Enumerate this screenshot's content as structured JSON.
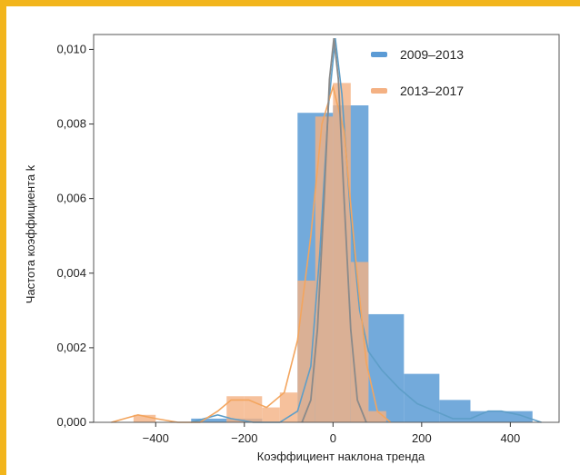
{
  "colors": {
    "frame": "#f2b51c",
    "series_a": "#5b9bd5",
    "series_b": "#f4b183",
    "kde_a": "#5e9ec8",
    "kde_b": "#f3a55e",
    "kde_peak": "#8a8a8a"
  },
  "chart_data": {
    "type": "bar",
    "title": "",
    "xlabel": "Коэффициент наклона тренда",
    "ylabel": "Частота  коэффициента k",
    "xlim": [
      -540,
      510
    ],
    "ylim": [
      0,
      0.0104
    ],
    "xticks": [
      -400,
      -200,
      0,
      200,
      400
    ],
    "xtick_labels": [
      "−400",
      "−200",
      "0",
      "200",
      "400"
    ],
    "yticks": [
      0,
      0.002,
      0.004,
      0.006,
      0.008,
      0.01
    ],
    "ytick_labels": [
      "0,000",
      "0,002",
      "0,004",
      "0,006",
      "0,008",
      "0,010"
    ],
    "legend_position": "top-right",
    "grid": false,
    "series": [
      {
        "name": "2009–2013",
        "color": "#5b9bd5",
        "bins": [
          {
            "x0": -320,
            "x1": -240,
            "value": 0.0001
          },
          {
            "x0": -240,
            "x1": -160,
            "value": 0.0001
          },
          {
            "x0": -80,
            "x1": 0,
            "value": 0.0083
          },
          {
            "x0": 0,
            "x1": 80,
            "value": 0.0085
          },
          {
            "x0": 80,
            "x1": 160,
            "value": 0.0029
          },
          {
            "x0": 160,
            "x1": 240,
            "value": 0.0013
          },
          {
            "x0": 240,
            "x1": 310,
            "value": 0.0006
          },
          {
            "x0": 310,
            "x1": 450,
            "value": 0.0003
          }
        ],
        "kde": [
          [
            -320,
            0.0
          ],
          [
            -290,
            0.0001
          ],
          [
            -260,
            0.0002
          ],
          [
            -230,
            0.0001
          ],
          [
            -180,
            0.0
          ],
          [
            -120,
            0.0
          ],
          [
            -80,
            0.0003
          ],
          [
            -50,
            0.0015
          ],
          [
            -30,
            0.0045
          ],
          [
            -10,
            0.0085
          ],
          [
            5,
            0.0103
          ],
          [
            20,
            0.0088
          ],
          [
            40,
            0.0055
          ],
          [
            60,
            0.003
          ],
          [
            80,
            0.0019
          ],
          [
            110,
            0.0014
          ],
          [
            150,
            0.0009
          ],
          [
            190,
            0.0005
          ],
          [
            230,
            0.0003
          ],
          [
            270,
            0.0001
          ],
          [
            310,
            0.0001
          ],
          [
            350,
            0.0003
          ],
          [
            380,
            0.0003
          ],
          [
            420,
            0.0002
          ],
          [
            470,
            0.0
          ]
        ]
      },
      {
        "name": "2013–2017",
        "color": "#f4b183",
        "bins": [
          {
            "x0": -450,
            "x1": -400,
            "value": 0.0002
          },
          {
            "x0": -240,
            "x1": -200,
            "value": 0.0007
          },
          {
            "x0": -200,
            "x1": -160,
            "value": 0.0007
          },
          {
            "x0": -160,
            "x1": -120,
            "value": 0.0004
          },
          {
            "x0": -120,
            "x1": -80,
            "value": 0.0008
          },
          {
            "x0": -80,
            "x1": -40,
            "value": 0.0038
          },
          {
            "x0": -40,
            "x1": 0,
            "value": 0.0082
          },
          {
            "x0": 0,
            "x1": 40,
            "value": 0.0091
          },
          {
            "x0": 40,
            "x1": 80,
            "value": 0.0043
          },
          {
            "x0": 80,
            "x1": 120,
            "value": 0.0003
          }
        ],
        "kde": [
          [
            -500,
            0.0
          ],
          [
            -470,
            0.0001
          ],
          [
            -440,
            0.0002
          ],
          [
            -400,
            0.0001
          ],
          [
            -350,
            0.0
          ],
          [
            -300,
            0.0
          ],
          [
            -260,
            0.0003
          ],
          [
            -230,
            0.0006
          ],
          [
            -190,
            0.0006
          ],
          [
            -150,
            0.0004
          ],
          [
            -110,
            0.0008
          ],
          [
            -80,
            0.0022
          ],
          [
            -50,
            0.005
          ],
          [
            -25,
            0.008
          ],
          [
            0,
            0.009
          ],
          [
            25,
            0.0078
          ],
          [
            50,
            0.0045
          ],
          [
            75,
            0.0016
          ],
          [
            100,
            0.0003
          ],
          [
            130,
            0.0
          ]
        ]
      }
    ],
    "peak_curve": [
      [
        -70,
        0.0
      ],
      [
        -50,
        0.0006
      ],
      [
        -35,
        0.0025
      ],
      [
        -20,
        0.006
      ],
      [
        -8,
        0.0092
      ],
      [
        2,
        0.0103
      ],
      [
        12,
        0.0092
      ],
      [
        25,
        0.006
      ],
      [
        40,
        0.0025
      ],
      [
        55,
        0.0006
      ],
      [
        75,
        0.0
      ]
    ]
  }
}
